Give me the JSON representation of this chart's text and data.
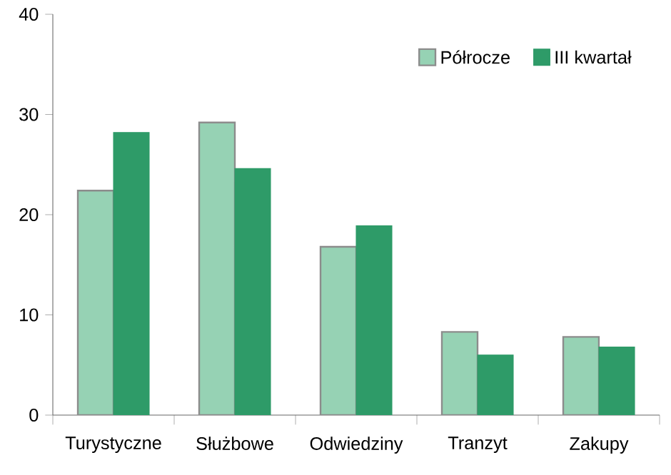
{
  "chart_data": {
    "type": "bar",
    "categories": [
      "Turystyczne",
      "Służbowe",
      "Odwiedziny",
      "Tranzyt",
      "Zakupy"
    ],
    "series": [
      {
        "name": "Półrocze",
        "color": "#96d2b4",
        "values": [
          22.4,
          29.2,
          16.8,
          8.3,
          7.8
        ]
      },
      {
        "name": "III kwartał",
        "color": "#2e9b68",
        "values": [
          28.2,
          24.6,
          18.9,
          6.0,
          6.8
        ]
      }
    ],
    "ylim": [
      0,
      40
    ],
    "yticks": [
      0,
      10,
      20,
      30,
      40
    ],
    "grid": false,
    "legend": "top right"
  }
}
